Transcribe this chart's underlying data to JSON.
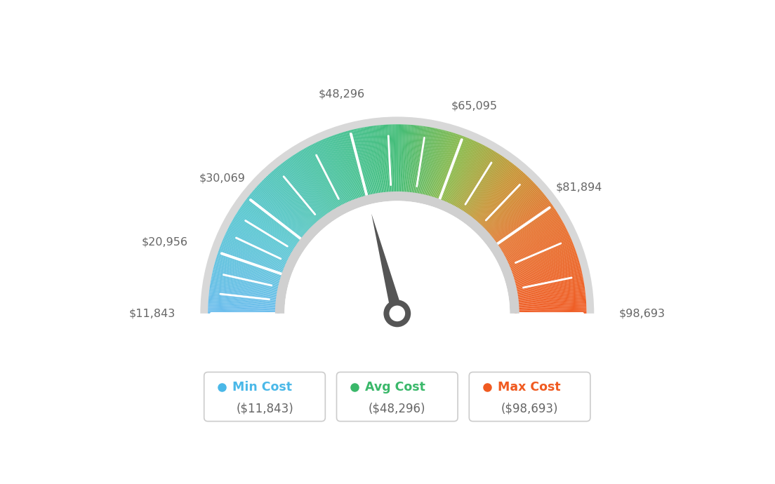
{
  "min_value": 11843,
  "max_value": 98693,
  "avg_value": 48296,
  "tick_labels": [
    "$11,843",
    "$20,956",
    "$30,069",
    "$48,296",
    "$65,095",
    "$81,894",
    "$98,693"
  ],
  "tick_values": [
    11843,
    20956,
    30069,
    48296,
    65095,
    81894,
    98693
  ],
  "legend_items": [
    {
      "label": "Min Cost",
      "value": "($11,843)",
      "color": "#4ab8e8"
    },
    {
      "label": "Avg Cost",
      "value": "($48,296)",
      "color": "#3ab86a"
    },
    {
      "label": "Max Cost",
      "value": "($98,693)",
      "color": "#f05a20"
    }
  ],
  "color_stops": [
    [
      0.0,
      [
        0.42,
        0.74,
        0.93
      ]
    ],
    [
      0.18,
      [
        0.35,
        0.78,
        0.82
      ]
    ],
    [
      0.38,
      [
        0.28,
        0.76,
        0.6
      ]
    ],
    [
      0.5,
      [
        0.26,
        0.74,
        0.47
      ]
    ],
    [
      0.62,
      [
        0.55,
        0.72,
        0.28
      ]
    ],
    [
      0.72,
      [
        0.78,
        0.58,
        0.2
      ]
    ],
    [
      0.82,
      [
        0.9,
        0.45,
        0.18
      ]
    ],
    [
      1.0,
      [
        0.94,
        0.36,
        0.14
      ]
    ]
  ],
  "background_color": "#ffffff",
  "outer_ring_color": "#d8d8d8",
  "inner_ring_color": "#d0d0d0",
  "needle_color": "#555555",
  "hub_color": "#555555"
}
